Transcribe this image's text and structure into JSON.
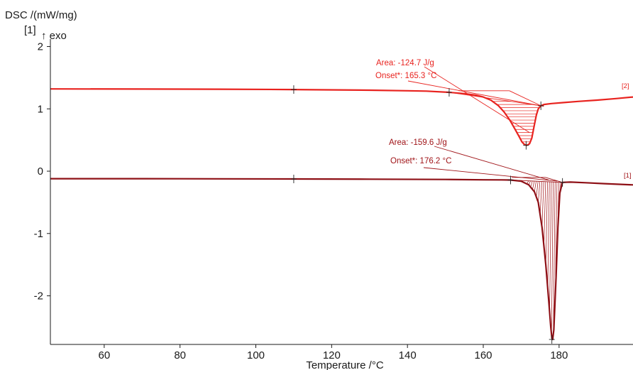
{
  "chart_data": {
    "type": "line",
    "title": "",
    "ylabel": "DSC /(mW/mg)",
    "y_marker": "[1]",
    "exo_label": "↑ exo",
    "xlabel": "Temperature /°C",
    "xlim": [
      45.8,
      199.5
    ],
    "ylim": [
      -2.78,
      2.12
    ],
    "x_ticks": [
      60,
      80,
      100,
      120,
      140,
      160,
      180
    ],
    "y_ticks": [
      2,
      1,
      0,
      -1,
      -2
    ],
    "grid": false,
    "colors": {
      "curve_2": "#e8231f",
      "curve_1": "#8e1016",
      "annotation_2": "#e8231f",
      "annotation_1": "#a01418"
    },
    "series": [
      {
        "name": "[2]",
        "tag": "[2]",
        "x": [
          45.8,
          70,
          90,
          110,
          130,
          140,
          145,
          151,
          155,
          158,
          160,
          162,
          164,
          165.5,
          167,
          168.5,
          169.5,
          170.2,
          170.8,
          171.5,
          172.2,
          172.8,
          173.4,
          174,
          174.5,
          175.2,
          176,
          178,
          181,
          185,
          190,
          195,
          199.5
        ],
        "y": [
          1.32,
          1.318,
          1.315,
          1.31,
          1.3,
          1.29,
          1.285,
          1.265,
          1.245,
          1.22,
          1.19,
          1.14,
          1.05,
          0.95,
          0.82,
          0.66,
          0.55,
          0.47,
          0.43,
          0.415,
          0.44,
          0.53,
          0.72,
          0.9,
          1.0,
          1.05,
          1.07,
          1.085,
          1.1,
          1.12,
          1.14,
          1.165,
          1.19
        ],
        "annotations": {
          "area": "Area: -124.7 J/g",
          "onset": "Onset*: 165.3 °C",
          "onset_temperature_c": 165.3,
          "area_j_per_g": -124.7,
          "baseline_x": [
            151,
            175.2
          ],
          "baseline_y": [
            1.265,
            1.05
          ],
          "tangent_x": [
            153.5,
            166.9
          ],
          "tangent_y": [
            1.29,
            1.29
          ],
          "markers_x": [
            110,
            151,
            171.3,
            175.2
          ]
        }
      },
      {
        "name": "[1]",
        "tag": "[1]",
        "x": [
          45.8,
          70,
          90,
          110,
          130,
          150,
          160,
          165,
          167.2,
          170,
          172,
          173.5,
          174.5,
          175.5,
          176.5,
          177.3,
          177.8,
          178.1,
          178.3,
          178.6,
          179.2,
          179.7,
          180.2,
          180.9,
          183,
          187,
          192,
          199.5
        ],
        "y": [
          -0.12,
          -0.12,
          -0.123,
          -0.125,
          -0.128,
          -0.133,
          -0.138,
          -0.14,
          -0.142,
          -0.16,
          -0.22,
          -0.33,
          -0.5,
          -0.9,
          -1.5,
          -2.1,
          -2.5,
          -2.68,
          -2.7,
          -2.55,
          -1.7,
          -0.9,
          -0.35,
          -0.18,
          -0.175,
          -0.185,
          -0.2,
          -0.22
        ],
        "annotations": {
          "area": "Area: -159.6 J/g",
          "onset": "Onset*: 176.2 °C",
          "onset_temperature_c": 176.2,
          "area_j_per_g": -159.6,
          "baseline_x": [
            167.2,
            180.9
          ],
          "baseline_y": [
            -0.142,
            -0.18
          ],
          "tangent_x": [
            167.5,
            176.4
          ],
          "tangent_y": [
            -0.1,
            -0.1
          ],
          "markers_x": [
            110,
            167.2,
            178.1,
            180.9
          ]
        }
      }
    ]
  }
}
